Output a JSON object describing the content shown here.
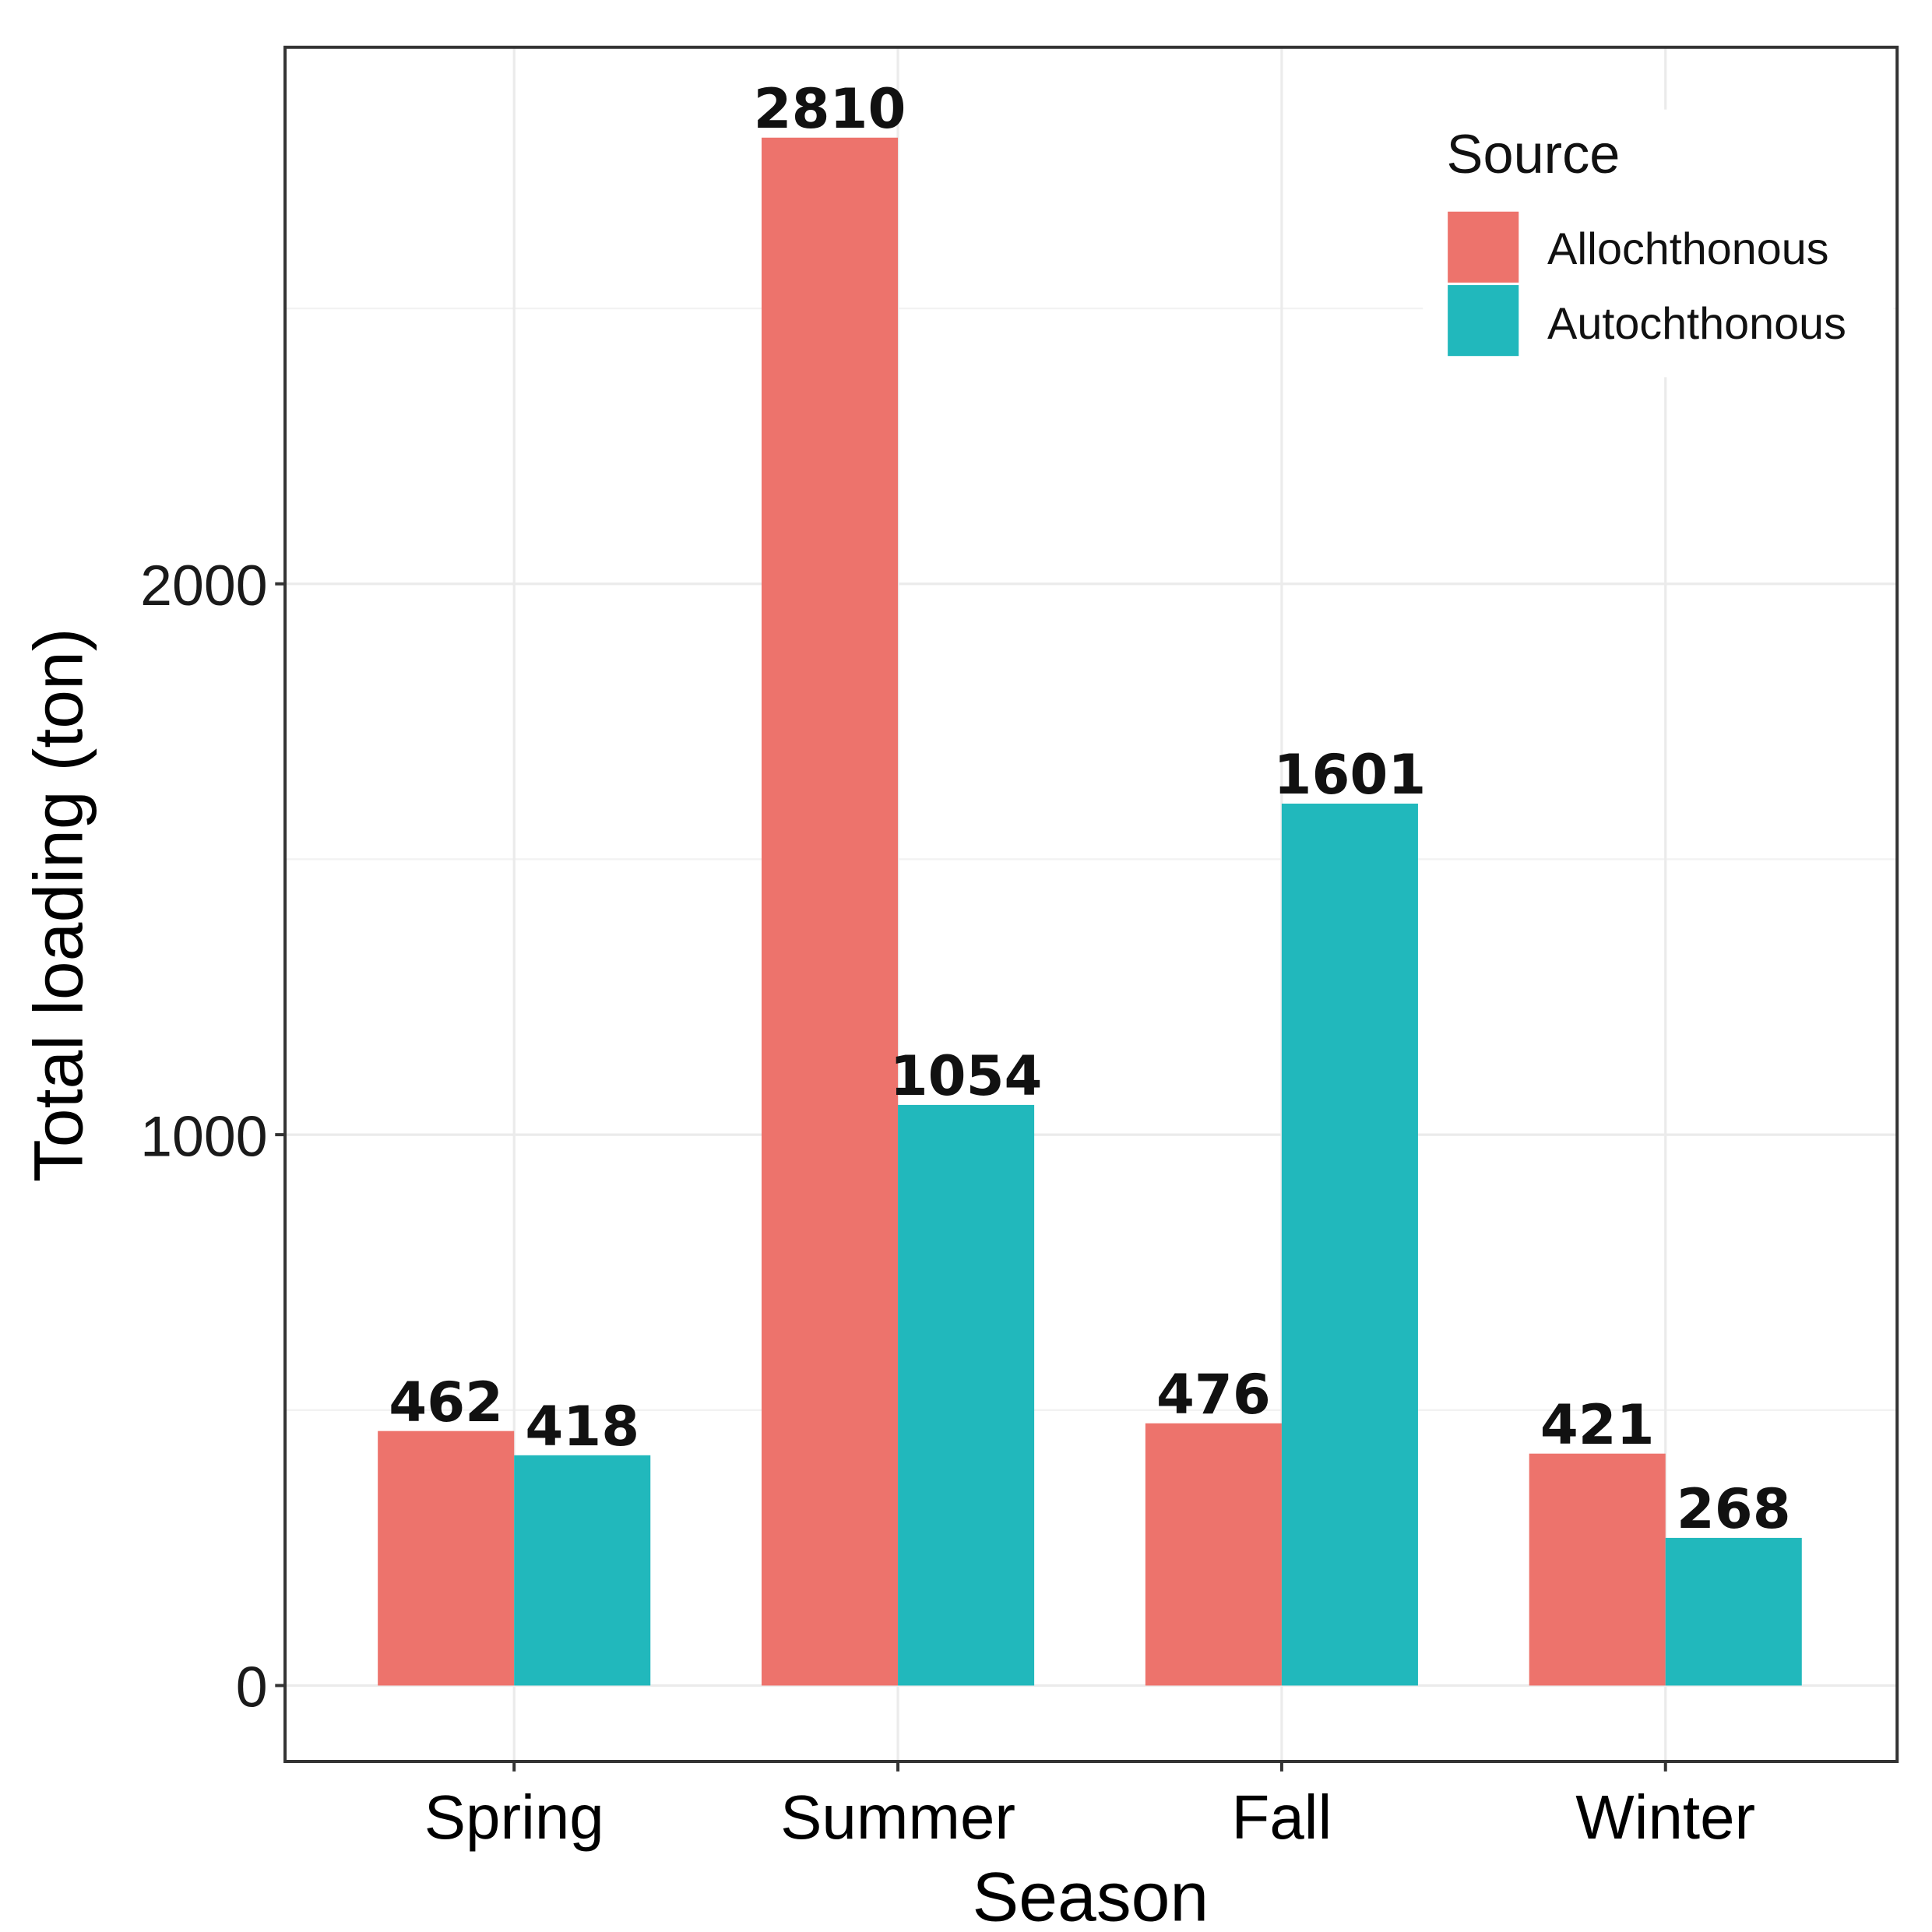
{
  "chart_data": {
    "type": "bar",
    "title": "",
    "xlabel": "Season",
    "ylabel": "Total loading (ton)",
    "categories": [
      "Spring",
      "Summer",
      "Fall",
      "Winter"
    ],
    "series": [
      {
        "name": "Allochthonous",
        "color": "#ED736C",
        "values": [
          462,
          2810,
          476,
          421
        ]
      },
      {
        "name": "Autochthonous",
        "color": "#21B8BC",
        "values": [
          418,
          1054,
          1601,
          268
        ]
      }
    ],
    "yticks": [
      0,
      1000,
      2000
    ],
    "ytick_labels": [
      "0",
      "1000",
      "2000"
    ],
    "ylim": [
      -140,
      2970
    ],
    "grid": true,
    "legend": {
      "title": "Source",
      "position": "top-right"
    }
  }
}
